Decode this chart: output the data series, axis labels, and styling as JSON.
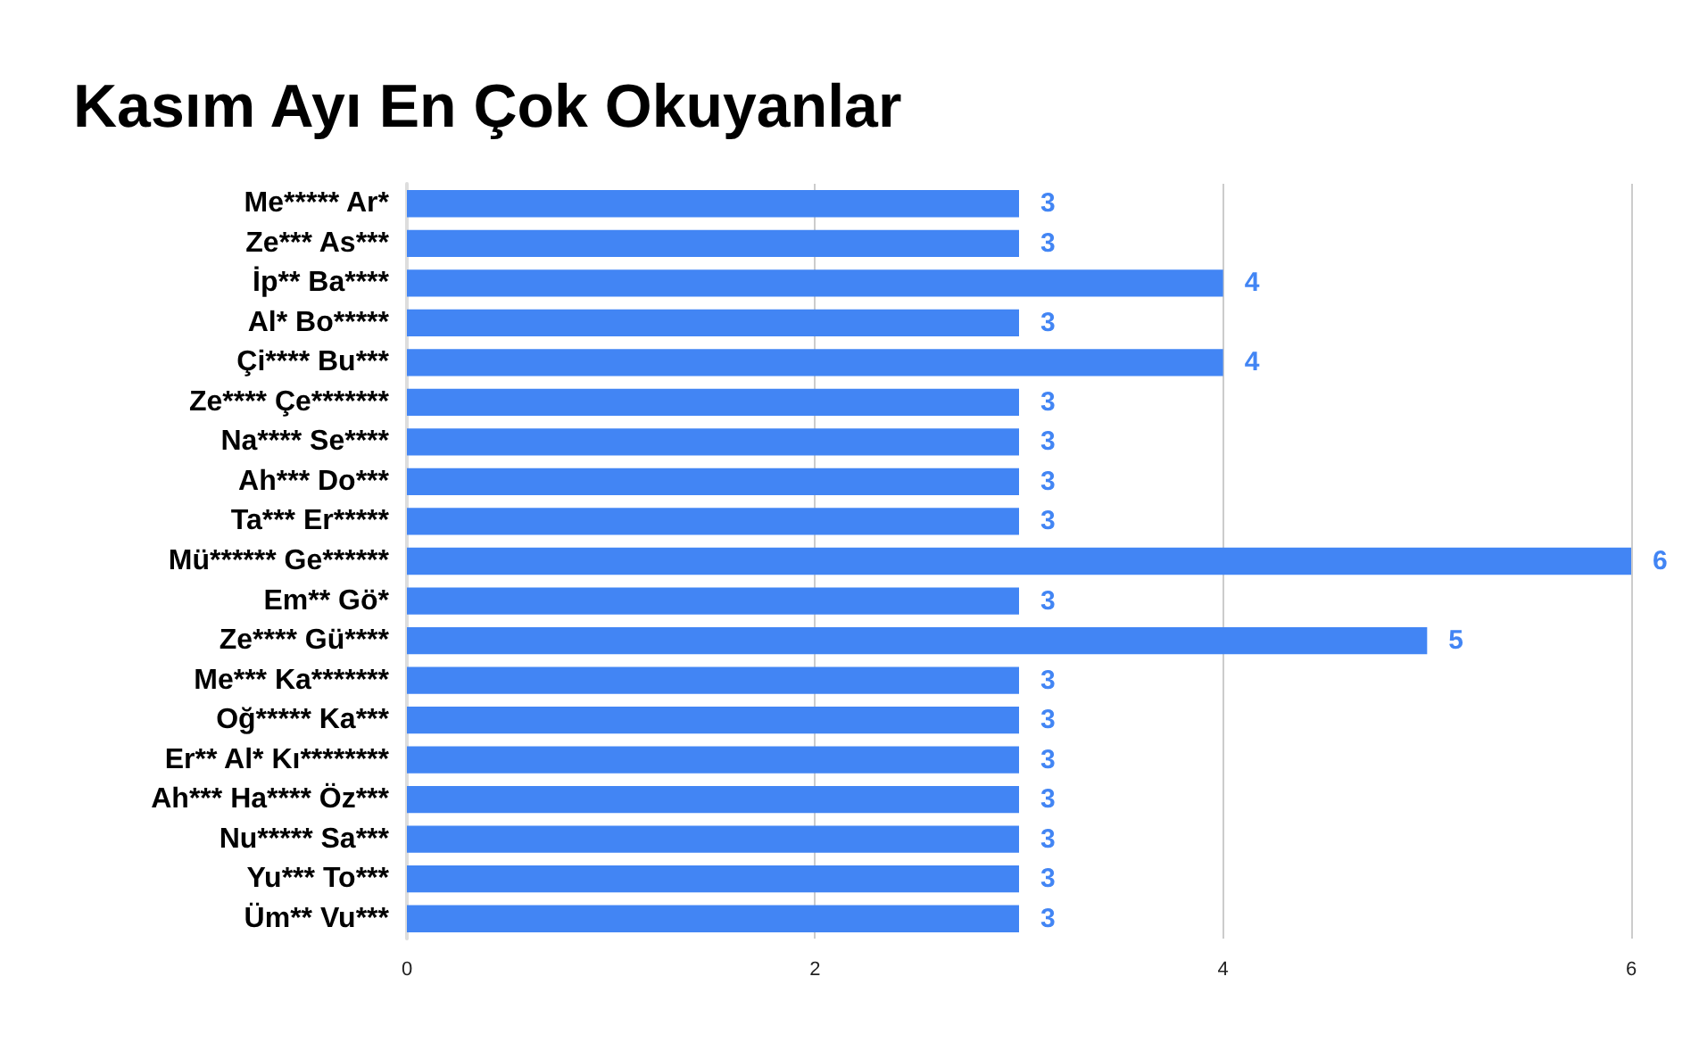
{
  "chart_data": {
    "type": "bar",
    "orientation": "horizontal",
    "title": "Kasım Ayı En Çok Okuyanlar",
    "categories": [
      "Me***** Ar*",
      "Ze*** As***",
      "İp** Ba****",
      "Al* Bo*****",
      "Çi**** Bu***",
      "Ze**** Çe*******",
      "Na**** Se****",
      "Ah*** Do***",
      "Ta*** Er*****",
      "Mü****** Ge******",
      "Em** Gö*",
      "Ze**** Gü****",
      "Me*** Ka*******",
      "Oğ***** Ka***",
      "Er** Al* Kı********",
      "Ah*** Ha**** Öz***",
      "Nu***** Sa***",
      "Yu*** To***",
      "Üm** Vu***"
    ],
    "values": [
      3,
      3,
      4,
      3,
      4,
      3,
      3,
      3,
      3,
      6,
      3,
      5,
      3,
      3,
      3,
      3,
      3,
      3,
      3
    ],
    "color": "#4285f4",
    "xlim": [
      0,
      6
    ],
    "xticks": [
      0,
      2,
      4,
      6
    ],
    "grid": "x",
    "data_labels": true
  }
}
